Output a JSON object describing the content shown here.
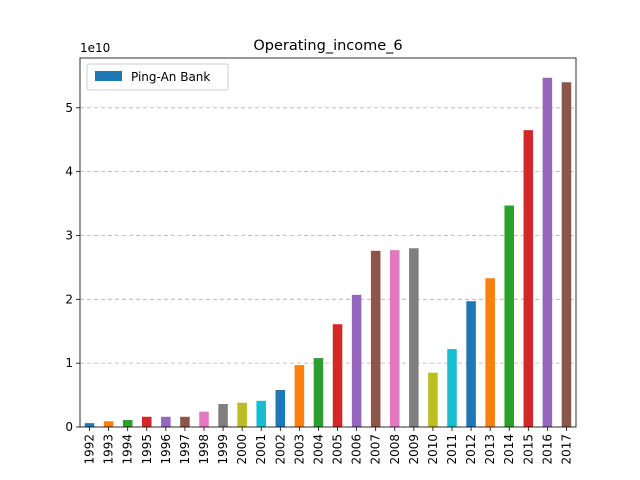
{
  "chart_data": {
    "type": "bar",
    "title": "Operating_income_6",
    "xlabel": "",
    "ylabel": "",
    "y_scale_label": "1e10",
    "ylim": [
      0,
      57800000000.0
    ],
    "yticks": [
      0,
      1,
      2,
      3,
      4,
      5
    ],
    "y_unit": 10000000000.0,
    "grid": "y-dashed",
    "legend": {
      "position": "top-left",
      "entries": [
        "Ping-An Bank"
      ]
    },
    "categories": [
      "1992",
      "1993",
      "1994",
      "1995",
      "1996",
      "1997",
      "1998",
      "1999",
      "2000",
      "2001",
      "2002",
      "2003",
      "2004",
      "2005",
      "2006",
      "2007",
      "2008",
      "2009",
      "2010",
      "2011",
      "2012",
      "2013",
      "2014",
      "2015",
      "2016",
      "2017"
    ],
    "series": [
      {
        "name": "Ping-An Bank",
        "values": [
          600000000.0,
          900000000.0,
          1100000000.0,
          1600000000.0,
          1600000000.0,
          1600000000.0,
          2400000000.0,
          3600000000.0,
          3800000000.0,
          4100000000.0,
          5800000000.0,
          9700000000.0,
          10800000000.0,
          16100000000.0,
          20700000000.0,
          27600000000.0,
          27700000000.0,
          28000000000.0,
          8500000000.0,
          12200000000.0,
          19700000000.0,
          23300000000.0,
          34700000000.0,
          46500000000.0,
          54700000000.0,
          54000000000.0
        ]
      }
    ],
    "colors": [
      "#1f77b4",
      "#ff7f0e",
      "#2ca02c",
      "#d62728",
      "#9467bd",
      "#8c564b",
      "#e377c2",
      "#7f7f7f",
      "#bcbd22",
      "#17becf"
    ]
  }
}
